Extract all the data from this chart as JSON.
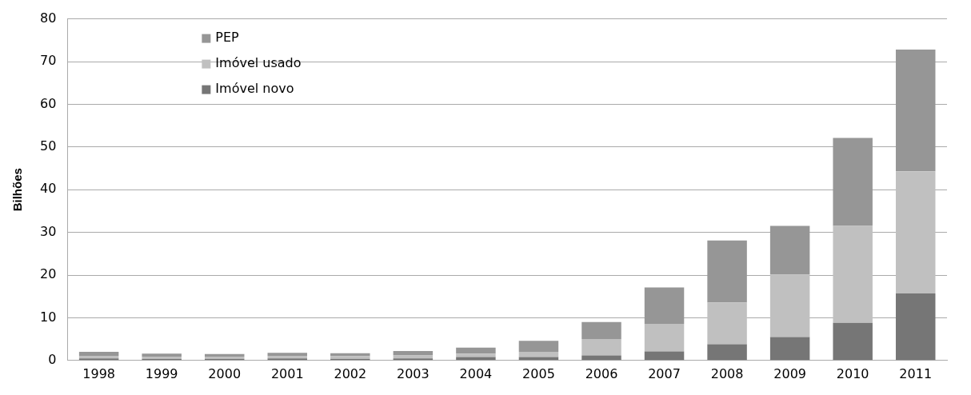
{
  "chart_data": {
    "type": "bar",
    "stacked": true,
    "ylabel": "Bilhões",
    "categories": [
      "1998",
      "1999",
      "2000",
      "2001",
      "2002",
      "2003",
      "2004",
      "2005",
      "2006",
      "2007",
      "2008",
      "2009",
      "2010",
      "2011"
    ],
    "series": [
      {
        "name": "Imóvel novo",
        "color": "#767676",
        "values": [
          0.5,
          0.4,
          0.4,
          0.5,
          0.4,
          0.5,
          0.8,
          0.8,
          1.2,
          2.1,
          3.8,
          5.5,
          8.8,
          15.7
        ]
      },
      {
        "name": "Imóvel usado",
        "color": "#c0c0c0",
        "values": [
          0.6,
          0.5,
          0.5,
          0.6,
          0.6,
          0.7,
          0.8,
          1.2,
          3.8,
          6.5,
          9.8,
          14.6,
          22.7,
          28.6
        ]
      },
      {
        "name": "PEP",
        "color": "#969696",
        "values": [
          0.9,
          0.7,
          0.6,
          0.7,
          0.7,
          1.0,
          1.4,
          2.6,
          4.0,
          8.5,
          14.5,
          11.4,
          20.6,
          28.5
        ]
      }
    ],
    "ylim": [
      0,
      80
    ],
    "yticks": [
      0,
      10,
      20,
      30,
      40,
      50,
      60,
      70,
      80
    ],
    "grid": "y",
    "legend": "top left"
  }
}
